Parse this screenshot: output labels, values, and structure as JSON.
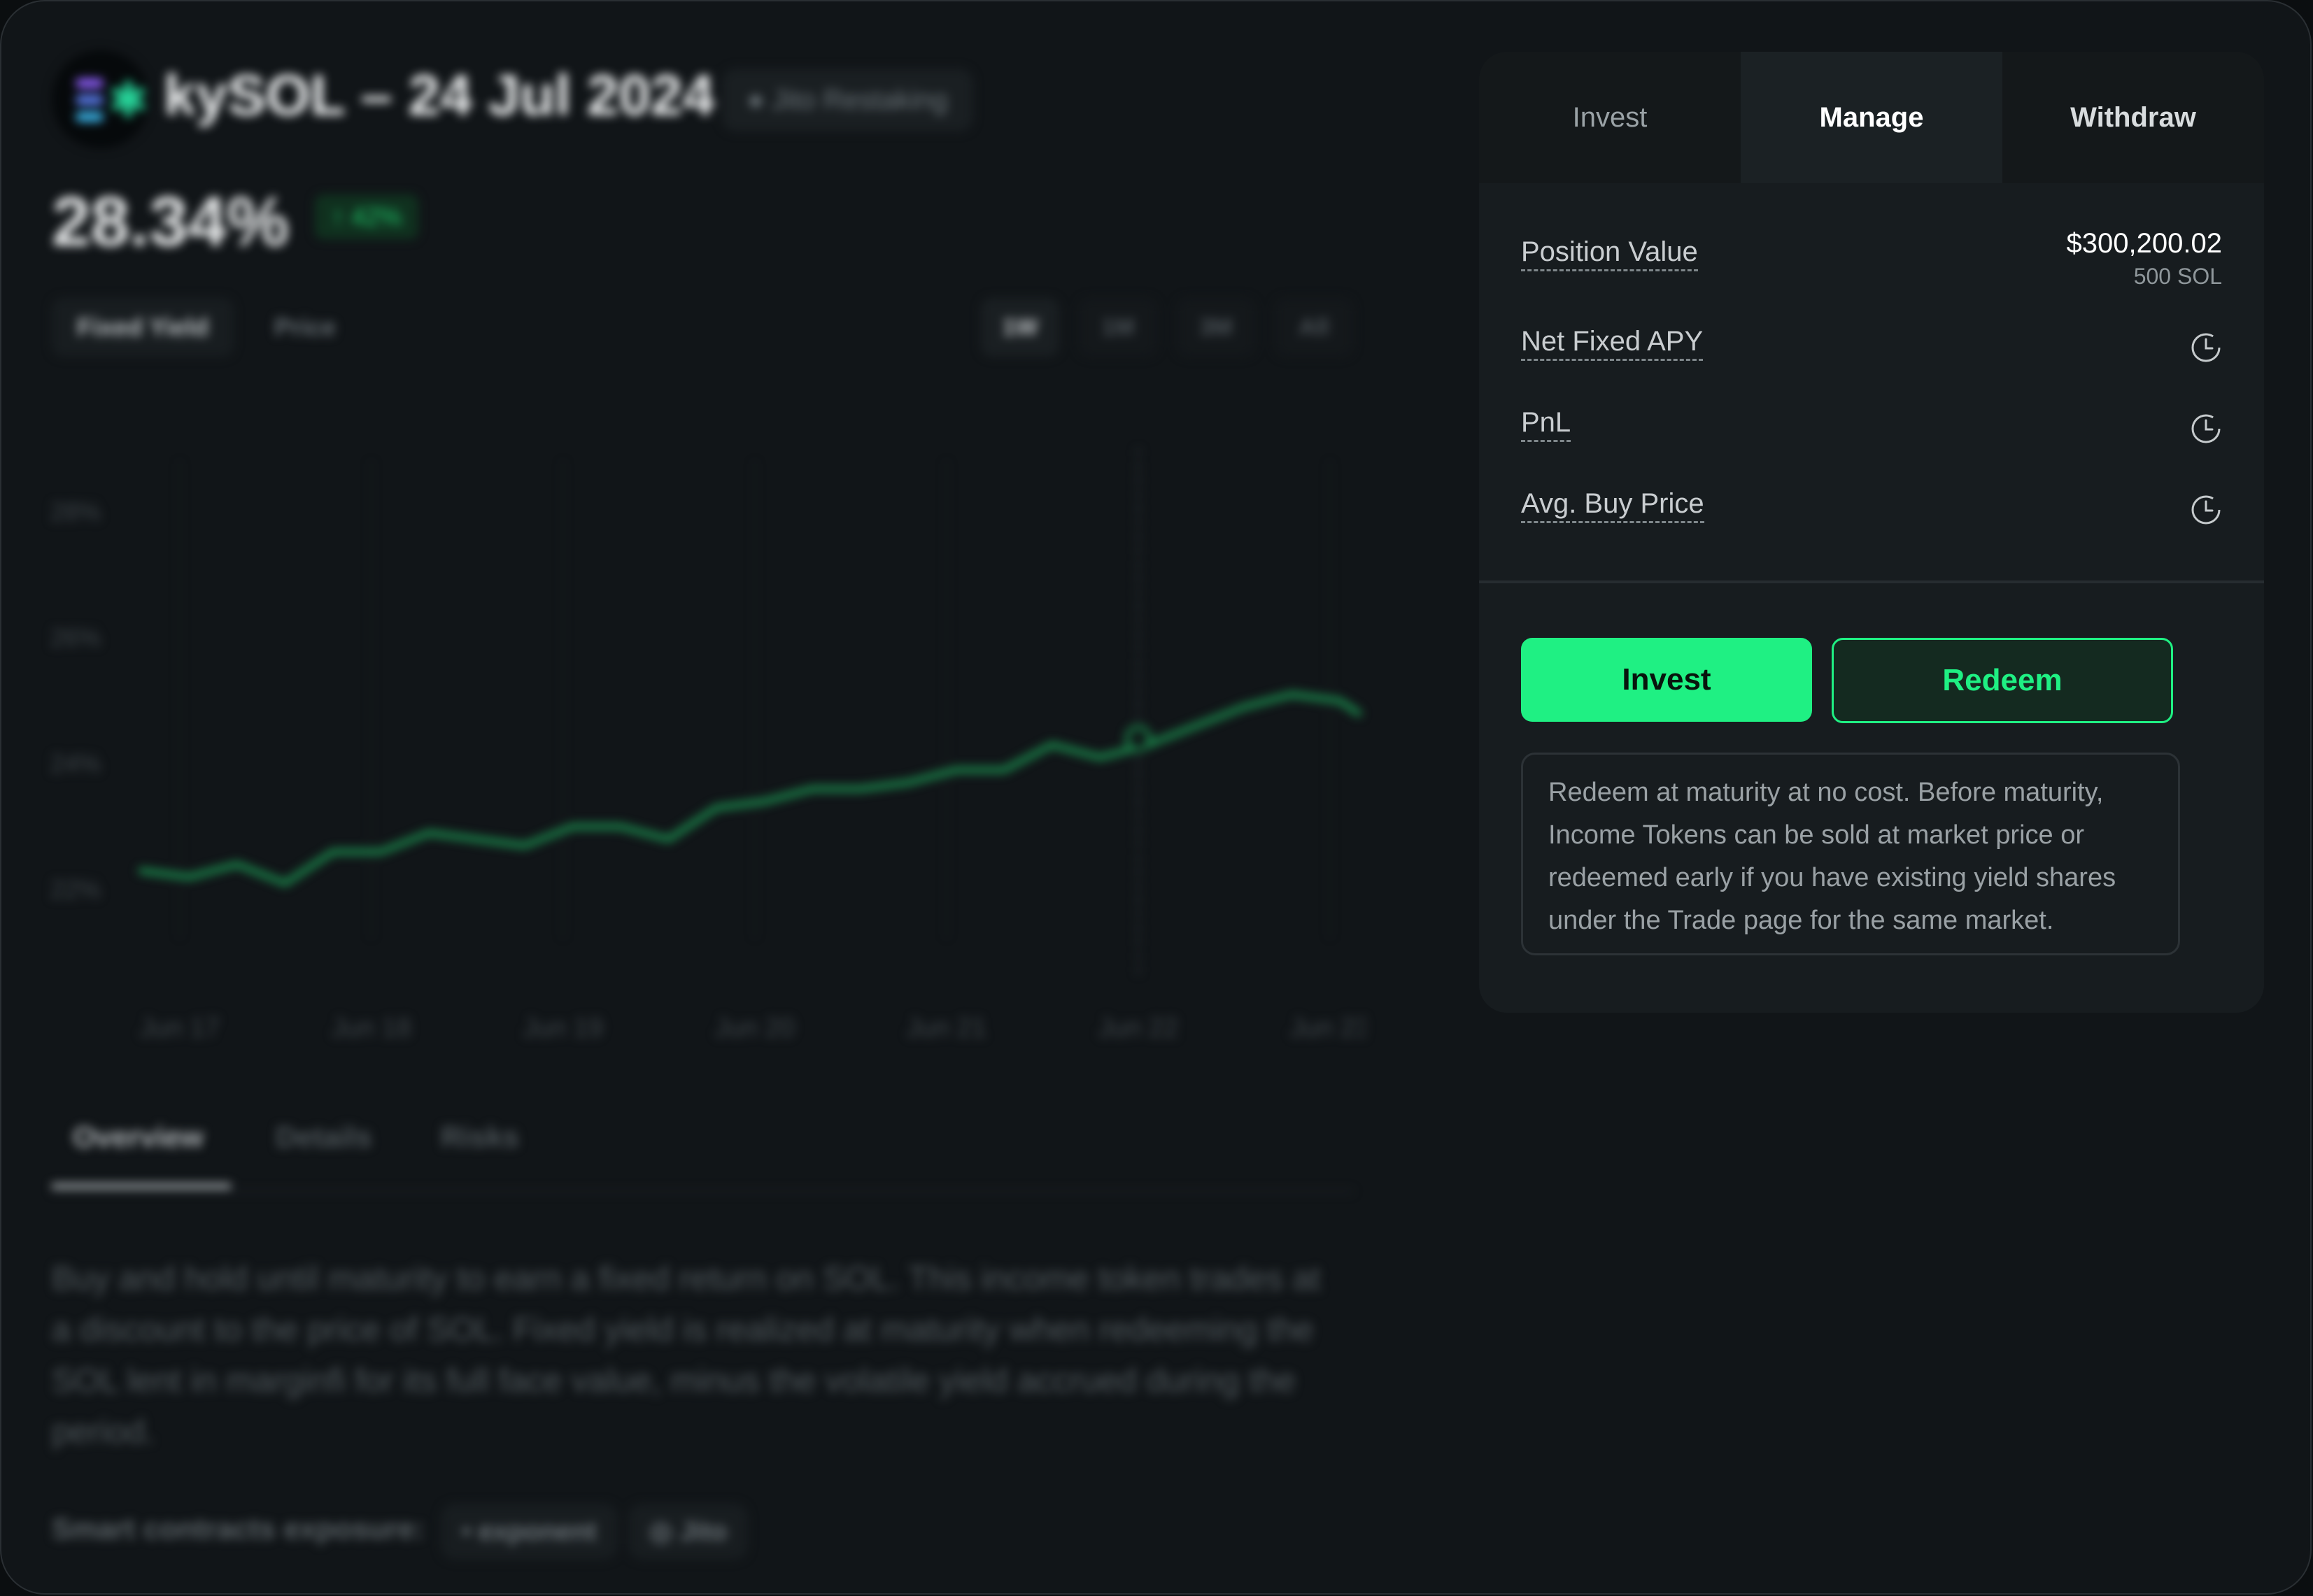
{
  "market": {
    "title": "kySOL – 24 Jul 2024",
    "platform": "Jito Restaking",
    "apy": "28.34%",
    "apy_change": "42%"
  },
  "chart_controls": {
    "view_tabs": [
      "Fixed Yield",
      "Price"
    ],
    "ranges": [
      "1W",
      "1M",
      "3M",
      "All"
    ]
  },
  "chart_data": {
    "type": "line",
    "x_ticks": [
      "Jun 17",
      "Jun 18",
      "Jun 19",
      "Jun 20",
      "Jun 21",
      "Jun 22",
      "Jun 23"
    ],
    "y_ticks": [
      "28%",
      "26%",
      "24%",
      "22%"
    ],
    "ylim": [
      21,
      29
    ],
    "series": [
      {
        "color": "#1b8a4d",
        "x": [
          16.8,
          17.05,
          17.3,
          17.55,
          17.8,
          18.05,
          18.3,
          18.55,
          18.8,
          19.05,
          19.3,
          19.55,
          19.8,
          20.05,
          20.3,
          20.55,
          20.8,
          21.05,
          21.3,
          21.55,
          21.8,
          22.05,
          22.3,
          22.55,
          22.8,
          23.05,
          23.15
        ],
        "y": [
          22.3,
          22.2,
          22.4,
          22.1,
          22.6,
          22.6,
          22.9,
          22.8,
          22.7,
          23.0,
          23.0,
          22.8,
          23.3,
          23.4,
          23.6,
          23.6,
          23.7,
          23.9,
          23.9,
          24.3,
          24.1,
          24.3,
          24.6,
          24.9,
          25.1,
          25.0,
          24.8
        ]
      }
    ],
    "highlight": {
      "x": 22.0,
      "y": 24.4
    }
  },
  "bottom_tabs": [
    "Overview",
    "Details",
    "Risks"
  ],
  "overview_text": "Buy and hold until maturity to earn a fixed return on SOL. This income token trades at a discount to the price of SOL. Fixed yield is realized at maturity when redeeming the SOL lent in marginfi for its full face value, minus the volatile yield accrued during the period.",
  "exposure": {
    "label": "Smart contracts exposure:",
    "chips": [
      "exponent",
      "Jito"
    ]
  },
  "panel": {
    "tabs": [
      "Invest",
      "Manage",
      "Withdraw"
    ],
    "position_value_label": "Position Value",
    "position_value": "$300,200.02",
    "position_value_sub": "500 SOL",
    "net_fixed_apy_label": "Net Fixed APY",
    "pnl_label": "PnL",
    "avg_buy_price_label": "Avg. Buy Price",
    "invest_button": "Invest",
    "redeem_button": "Redeem",
    "info_text": "Redeem at maturity at no cost. Before maturity, Income Tokens can be sold at market price or redeemed early if you have existing yield shares under the Trade page for the same market."
  }
}
